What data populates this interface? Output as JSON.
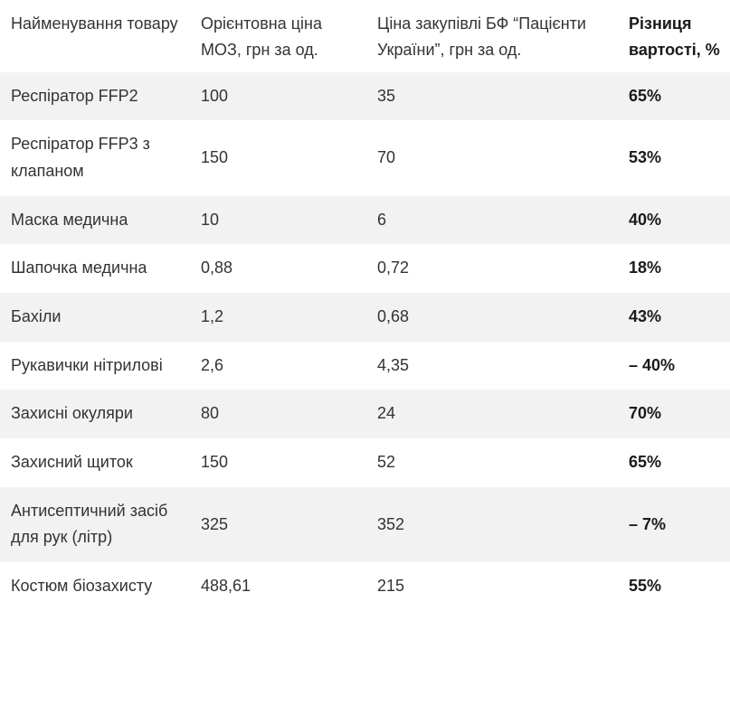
{
  "table": {
    "headers": {
      "name": "Найменування товару",
      "moz_price": "Орієнтовна ціна МОЗ, грн за од.",
      "bf_price": "Ціна закупівлі БФ “Пацієнти України”, грн за од.",
      "diff": "Різниця вартості, %"
    },
    "rows": [
      {
        "name": "Респіратор FFP2",
        "moz_price": "100",
        "bf_price": "35",
        "diff": "65%"
      },
      {
        "name": "Респіратор FFP3 з клапаном",
        "moz_price": "150",
        "bf_price": "70",
        "diff": "53%"
      },
      {
        "name": "Маска медична",
        "moz_price": "10",
        "bf_price": "6",
        "diff": "40%"
      },
      {
        "name": "Шапочка медична",
        "moz_price": "0,88",
        "bf_price": "0,72",
        "diff": "18%"
      },
      {
        "name": "Бахіли",
        "moz_price": "1,2",
        "bf_price": "0,68",
        "diff": "43%"
      },
      {
        "name": "Рукавички нітрилові",
        "moz_price": "2,6",
        "bf_price": "4,35",
        "diff": "– 40%"
      },
      {
        "name": "Захисні окуляри",
        "moz_price": "80",
        "bf_price": "24",
        "diff": "70%"
      },
      {
        "name": "Захисний щиток",
        "moz_price": "150",
        "bf_price": "52",
        "diff": "65%"
      },
      {
        "name": "Антисептичний засіб для рук (літр)",
        "moz_price": "325",
        "bf_price": "352",
        "diff": "– 7%"
      },
      {
        "name": "Костюм біозахисту",
        "moz_price": "488,61",
        "bf_price": "215",
        "diff": "55%"
      }
    ]
  }
}
